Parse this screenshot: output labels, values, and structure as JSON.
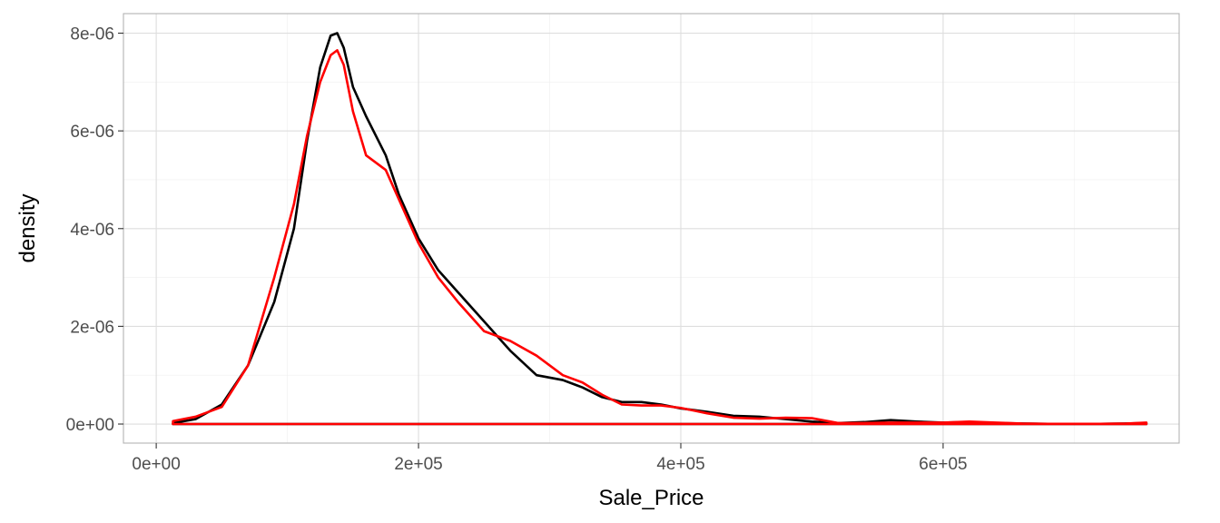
{
  "chart_data": {
    "type": "line",
    "title": "",
    "xlabel": "Sale_Price",
    "ylabel": "density",
    "xlim": [
      -25000,
      780000
    ],
    "ylim": [
      -3.9e-07,
      8.4e-06
    ],
    "x_ticks": [
      0,
      200000,
      400000,
      600000
    ],
    "x_tick_labels": [
      "0e+00",
      "2e+05",
      "4e+05",
      "6e+05"
    ],
    "y_ticks": [
      0,
      2e-06,
      4e-06,
      6e-06,
      8e-06
    ],
    "y_tick_labels": [
      "0e+00",
      "2e-06",
      "4e-06",
      "6e-06",
      "8e-06"
    ],
    "grid": true,
    "legend": "none",
    "series": [
      {
        "color": "#000000",
        "x": [
          12789,
          30000,
          50000,
          70000,
          90000,
          105000,
          115000,
          125000,
          133000,
          138000,
          143000,
          150000,
          160000,
          175000,
          185000,
          200000,
          215000,
          230000,
          250000,
          270000,
          290000,
          310000,
          325000,
          340000,
          355000,
          370000,
          385000,
          400000,
          420000,
          440000,
          460000,
          480000,
          500000,
          520000,
          540000,
          560000,
          580000,
          600000,
          620000,
          640000,
          660000,
          680000,
          700000,
          720000,
          740000,
          755000
        ],
        "y": [
          2e-08,
          1e-07,
          4e-07,
          1.2e-06,
          2.5e-06,
          4e-06,
          5.8e-06,
          7.3e-06,
          7.95e-06,
          8e-06,
          7.7e-06,
          6.9e-06,
          6.3e-06,
          5.5e-06,
          4.7e-06,
          3.8e-06,
          3.15e-06,
          2.7e-06,
          2.1e-06,
          1.5e-06,
          1e-06,
          9e-07,
          7.5e-07,
          5.5e-07,
          4.5e-07,
          4.5e-07,
          4e-07,
          3.2e-07,
          2.5e-07,
          1.7e-07,
          1.5e-07,
          1e-07,
          5e-08,
          2e-08,
          4e-08,
          8e-08,
          5e-08,
          3e-08,
          4e-08,
          2e-08,
          1e-08,
          5e-09,
          5e-09,
          5e-09,
          1e-08,
          2e-08
        ]
      },
      {
        "color": "#ff0000",
        "x": [
          12789,
          30000,
          50000,
          70000,
          90000,
          105000,
          115000,
          125000,
          133000,
          138000,
          143000,
          150000,
          160000,
          175000,
          185000,
          200000,
          215000,
          230000,
          250000,
          270000,
          290000,
          310000,
          325000,
          340000,
          355000,
          370000,
          385000,
          400000,
          420000,
          440000,
          460000,
          480000,
          500000,
          520000,
          540000,
          560000,
          580000,
          600000,
          620000,
          640000,
          660000,
          680000,
          700000,
          720000,
          740000,
          755000
        ],
        "y": [
          6e-08,
          1.5e-07,
          3.5e-07,
          1.2e-06,
          3e-06,
          4.5e-06,
          5.9e-06,
          7e-06,
          7.55e-06,
          7.65e-06,
          7.35e-06,
          6.4e-06,
          5.5e-06,
          5.2e-06,
          4.6e-06,
          3.7e-06,
          3e-06,
          2.5e-06,
          1.9e-06,
          1.7e-06,
          1.4e-06,
          1e-06,
          8.5e-07,
          6e-07,
          4e-07,
          3.8e-07,
          3.8e-07,
          3.3e-07,
          2.2e-07,
          1.3e-07,
          1.1e-07,
          1.3e-07,
          1.2e-07,
          2e-08,
          2e-08,
          3e-08,
          3e-08,
          3e-08,
          5e-08,
          3e-08,
          1e-08,
          5e-09,
          5e-09,
          5e-09,
          1e-08,
          3e-08
        ]
      }
    ]
  }
}
